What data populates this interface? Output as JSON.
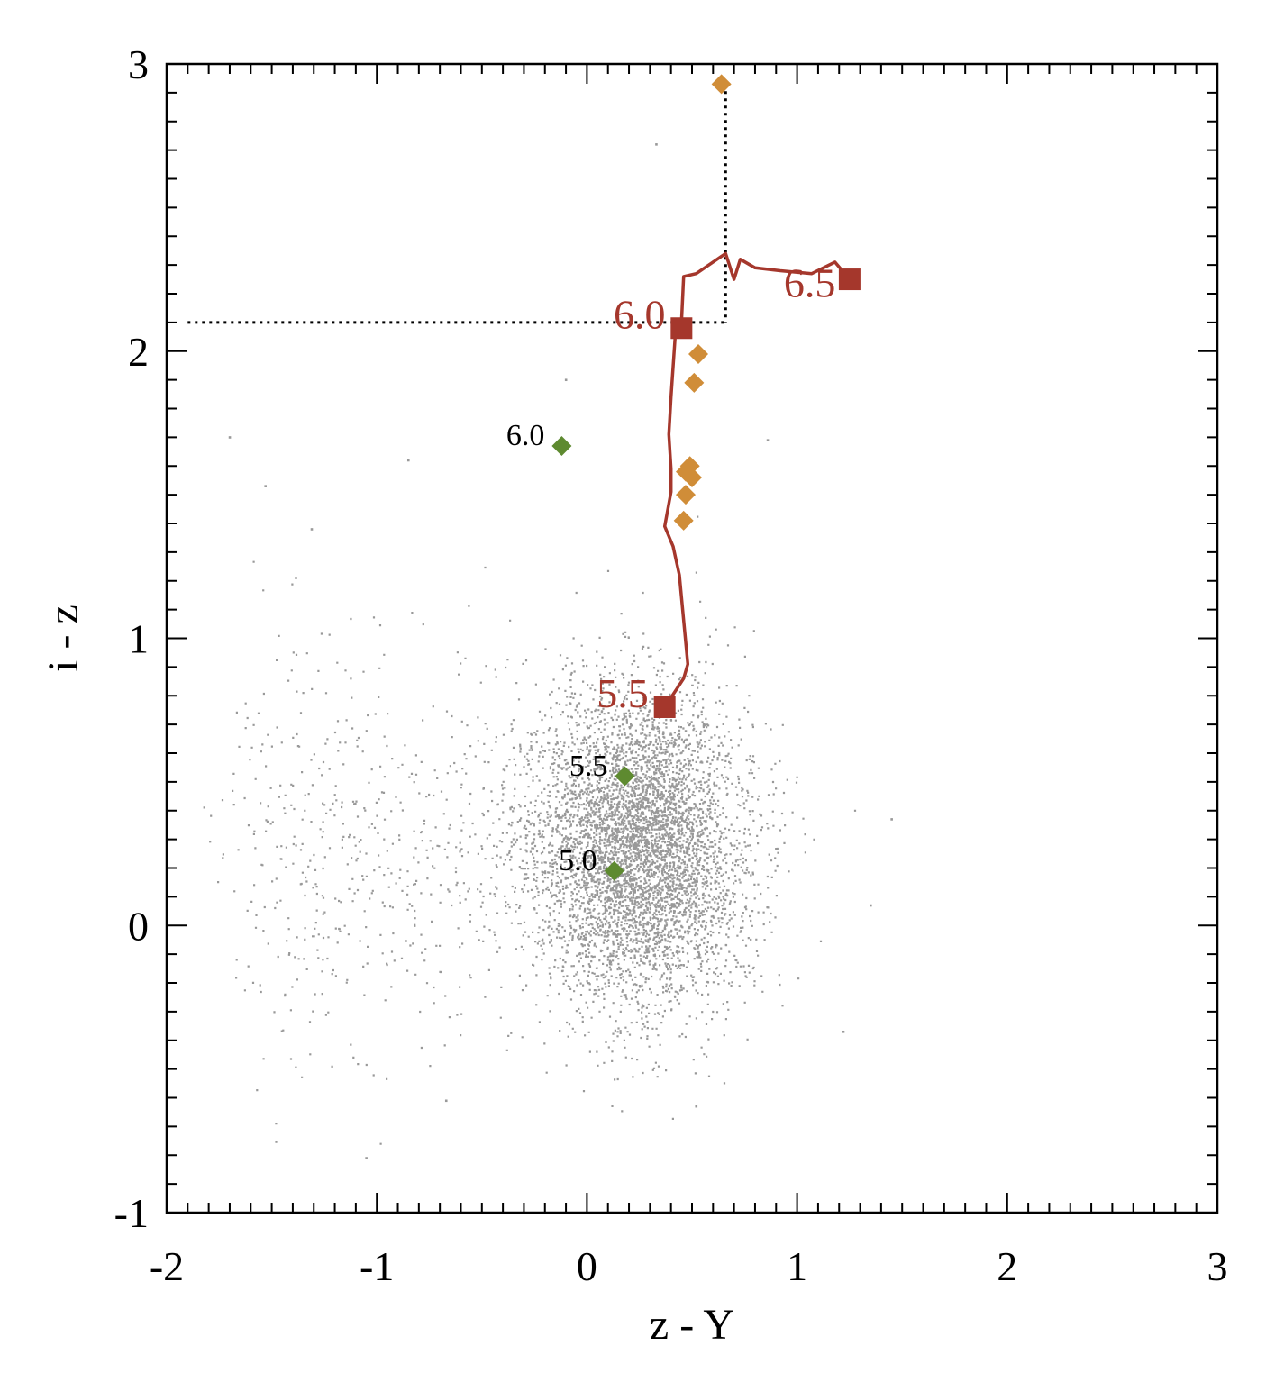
{
  "chart_data": {
    "type": "scatter",
    "xlabel": "z - Y",
    "ylabel": "i - z",
    "xlim": [
      -2,
      3
    ],
    "ylim": [
      -1,
      3
    ],
    "x_ticks": [
      -2,
      -1,
      0,
      1,
      2,
      3
    ],
    "x_tick_labels": [
      "-2",
      "-1",
      "0",
      "1",
      "2",
      "3"
    ],
    "y_ticks": [
      -1,
      0,
      1,
      2,
      3
    ],
    "y_tick_labels": [
      "-1",
      "0",
      "1",
      "2",
      "3"
    ],
    "x_minor_step": 0.1,
    "y_minor_step": 0.1,
    "grid": false,
    "legend": "none",
    "colors": {
      "background_points": "#999999",
      "track": "#a5372c",
      "orange_diamonds": "#d08d38",
      "green_diamonds": "#5e8a30",
      "guide_lines": "#000000"
    },
    "background_cloud": {
      "description_markers": "dense cloud of small grey points",
      "center": [
        0.25,
        0.27
      ],
      "spread_x": 0.27,
      "spread_y": 0.27,
      "count": 26000,
      "tail_toward": [
        -1.6,
        0.25
      ],
      "outliers": [
        [
          0.33,
          2.72
        ],
        [
          -0.85,
          1.62
        ],
        [
          -1.7,
          1.7
        ],
        [
          -1.53,
          1.53
        ],
        [
          -1.31,
          1.38
        ],
        [
          0.86,
          1.69
        ],
        [
          1.45,
          0.37
        ],
        [
          1.35,
          0.07
        ],
        [
          1.22,
          -0.37
        ],
        [
          -1.05,
          -0.81
        ],
        [
          -0.67,
          -0.61
        ],
        [
          0.52,
          -0.63
        ],
        [
          -0.1,
          1.9
        ]
      ]
    },
    "series": [
      {
        "marker": "line",
        "color": "#a5372c",
        "points": [
          [
            0.37,
            0.76
          ],
          [
            0.46,
            0.86
          ],
          [
            0.48,
            0.91
          ],
          [
            0.44,
            1.22
          ],
          [
            0.41,
            1.32
          ],
          [
            0.37,
            1.39
          ],
          [
            0.4,
            1.51
          ],
          [
            0.4,
            1.59
          ],
          [
            0.39,
            1.71
          ],
          [
            0.4,
            1.84
          ],
          [
            0.42,
            2.05
          ],
          [
            0.45,
            2.1
          ],
          [
            0.46,
            2.26
          ],
          [
            0.52,
            2.27
          ],
          [
            0.64,
            2.33
          ],
          [
            0.66,
            2.34
          ],
          [
            0.7,
            2.25
          ],
          [
            0.73,
            2.32
          ],
          [
            0.8,
            2.29
          ],
          [
            0.92,
            2.28
          ],
          [
            1.07,
            2.27
          ],
          [
            1.18,
            2.31
          ],
          [
            1.25,
            2.25
          ]
        ]
      },
      {
        "marker": "square",
        "color": "#a5372c",
        "points": [
          [
            0.37,
            0.76
          ],
          [
            0.45,
            2.08
          ],
          [
            1.25,
            2.25
          ]
        ],
        "labels": [
          "5.5",
          "6.0",
          "6.5"
        ],
        "label_offsets": [
          [
            -0.2,
            0.05
          ],
          [
            -0.2,
            0.05
          ],
          [
            -0.19,
            -0.01
          ]
        ]
      },
      {
        "marker": "diamond",
        "color": "#d08d38",
        "points": [
          [
            0.64,
            2.93
          ],
          [
            0.53,
            1.99
          ],
          [
            0.51,
            1.89
          ],
          [
            0.49,
            1.6
          ],
          [
            0.47,
            1.58
          ],
          [
            0.5,
            1.56
          ],
          [
            0.47,
            1.5
          ],
          [
            0.46,
            1.41
          ]
        ]
      },
      {
        "marker": "diamond",
        "color": "#5e8a30",
        "points": [
          [
            -0.12,
            1.67
          ],
          [
            0.18,
            0.52
          ],
          [
            0.13,
            0.19
          ]
        ],
        "labels": [
          "6.0",
          "5.5",
          "5.0"
        ],
        "label_offsets": [
          [
            -0.25,
            0.04
          ],
          [
            -0.25,
            0.04
          ],
          [
            -0.25,
            0.04
          ]
        ]
      }
    ],
    "guide_lines": [
      {
        "style": "dotted",
        "points": [
          [
            -1.9,
            2.1
          ],
          [
            0.66,
            2.1
          ]
        ]
      },
      {
        "style": "dotted",
        "points": [
          [
            0.66,
            2.93
          ],
          [
            0.66,
            2.1
          ]
        ]
      }
    ]
  }
}
